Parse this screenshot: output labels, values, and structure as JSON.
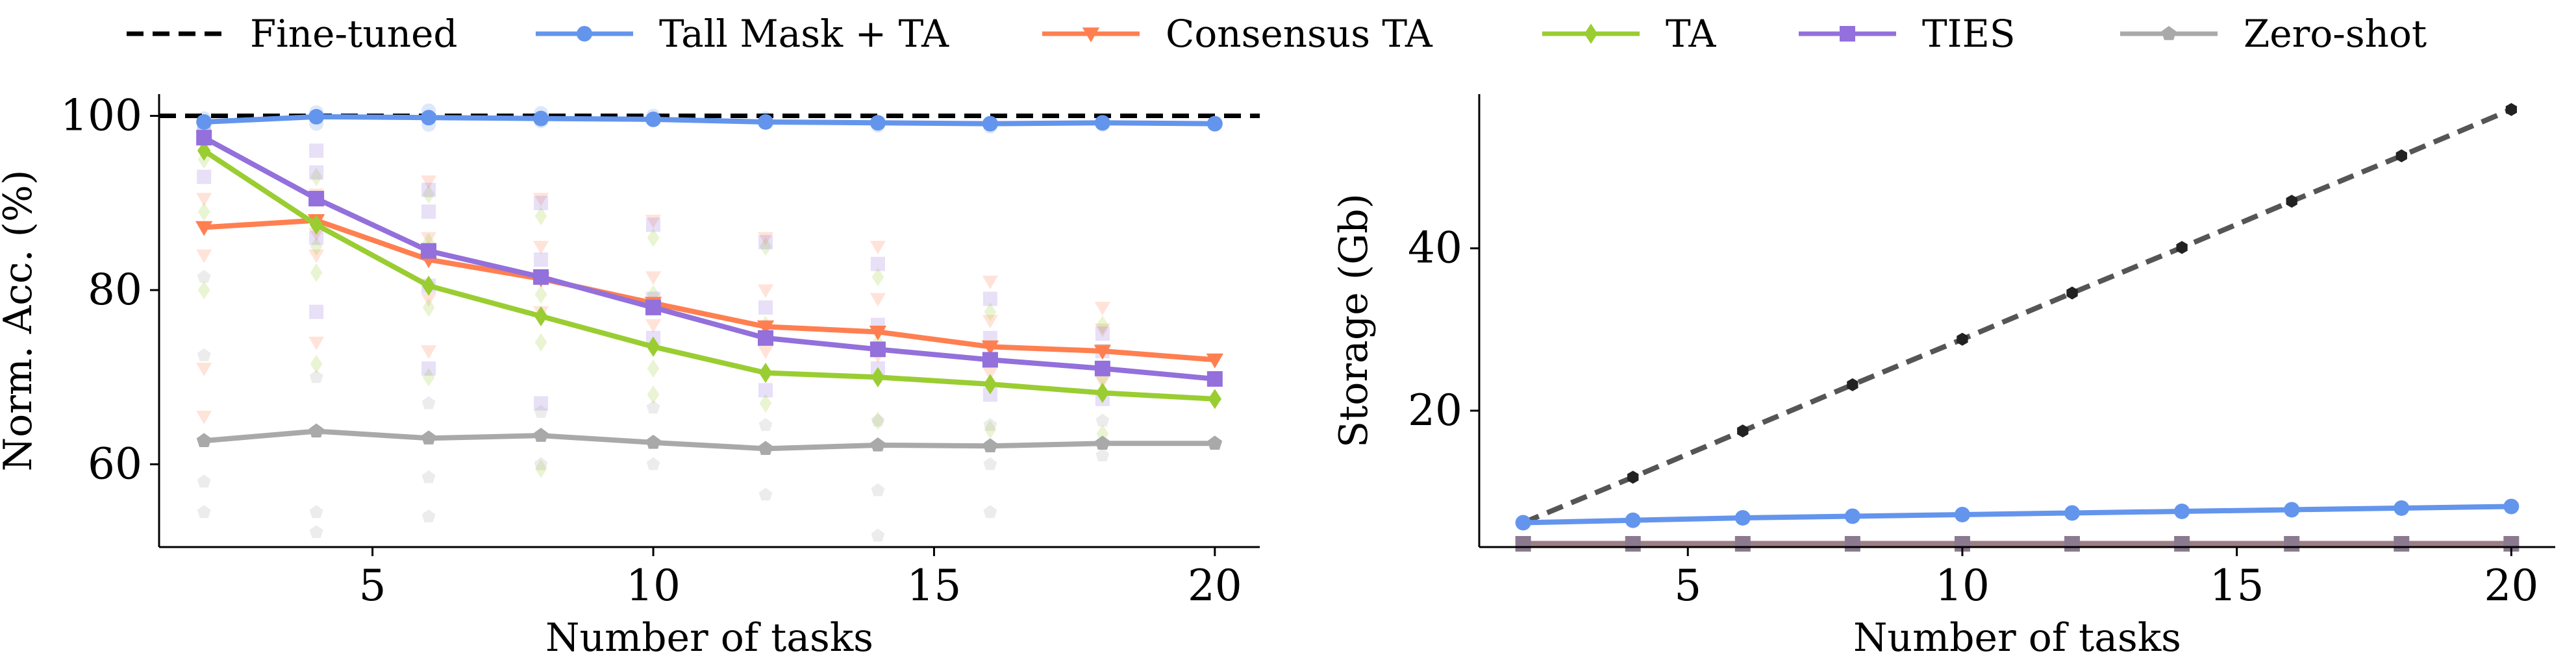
{
  "legend": [
    {
      "key": "finetuned",
      "label": "Fine-tuned"
    },
    {
      "key": "tallmask",
      "label": "Tall Mask + TA"
    },
    {
      "key": "consensus",
      "label": "Consensus TA"
    },
    {
      "key": "ta",
      "label": "TA"
    },
    {
      "key": "ties",
      "label": "TIES"
    },
    {
      "key": "zeroshot",
      "label": "Zero-shot"
    }
  ],
  "colors": {
    "finetuned": "#000000",
    "tallmask": "#6495ED",
    "consensus": "#FF7F50",
    "ta": "#9ACD32",
    "ties": "#9370DB",
    "zeroshot": "#A9A9A9",
    "storage_line": "#555555"
  },
  "chart_data": [
    {
      "type": "line",
      "xlabel": "Number of tasks",
      "ylabel": "Norm. Acc. (%)",
      "xlim": [
        1.2,
        20.8
      ],
      "ylim": [
        50.5,
        102.5
      ],
      "xticks": [
        5,
        10,
        15,
        20
      ],
      "yticks": [
        60,
        80,
        100
      ],
      "grid": false,
      "x": [
        2,
        4,
        6,
        8,
        10,
        12,
        14,
        16,
        18,
        20
      ],
      "reference_lines": [
        {
          "key": "finetuned",
          "name": "Fine-tuned",
          "value": 100,
          "style": "dashed"
        }
      ],
      "series": [
        {
          "key": "tallmask",
          "name": "Tall Mask + TA",
          "marker": "circle",
          "values": [
            99.3,
            99.9,
            99.8,
            99.7,
            99.6,
            99.3,
            99.2,
            99.1,
            99.2,
            99.1
          ]
        },
        {
          "key": "consensus",
          "name": "Consensus TA",
          "marker": "triangle-down",
          "values": [
            87.2,
            88.0,
            83.5,
            81.3,
            78.5,
            75.8,
            75.2,
            73.5,
            73.0,
            72.0
          ]
        },
        {
          "key": "ta",
          "name": "TA",
          "marker": "diamond",
          "values": [
            96.0,
            87.5,
            80.5,
            77.0,
            73.5,
            70.5,
            70.0,
            69.2,
            68.2,
            67.5
          ]
        },
        {
          "key": "ties",
          "name": "TIES",
          "marker": "square",
          "values": [
            97.5,
            90.5,
            84.5,
            81.5,
            78.0,
            74.5,
            73.2,
            72.0,
            71.0,
            69.8
          ]
        },
        {
          "key": "zeroshot",
          "name": "Zero-shot",
          "marker": "pentagon",
          "values": [
            62.7,
            63.8,
            63.0,
            63.3,
            62.5,
            61.8,
            62.2,
            62.1,
            62.4,
            62.4
          ]
        }
      ],
      "scatter_points": {
        "tallmask": [
          [
            2,
            98.4
          ],
          [
            2,
            99.7
          ],
          [
            4,
            100.4
          ],
          [
            4,
            99.1
          ],
          [
            6,
            100.6
          ],
          [
            6,
            99.0
          ],
          [
            8,
            100.3
          ],
          [
            8,
            99.4
          ],
          [
            10,
            100.0
          ],
          [
            12,
            99.7
          ],
          [
            14,
            98.9
          ],
          [
            16,
            98.8
          ],
          [
            18,
            99.0
          ]
        ],
        "consensus": [
          [
            2,
            90.5
          ],
          [
            2,
            84.0
          ],
          [
            2,
            71.0
          ],
          [
            2,
            65.5
          ],
          [
            4,
            91.0
          ],
          [
            4,
            86.5
          ],
          [
            4,
            84.0
          ],
          [
            4,
            74.0
          ],
          [
            6,
            92.5
          ],
          [
            6,
            86.0
          ],
          [
            6,
            79.0
          ],
          [
            6,
            73.0
          ],
          [
            8,
            90.5
          ],
          [
            8,
            85.0
          ],
          [
            8,
            77.5
          ],
          [
            10,
            88.0
          ],
          [
            10,
            81.5
          ],
          [
            10,
            76.0
          ],
          [
            12,
            86.0
          ],
          [
            12,
            80.0
          ],
          [
            12,
            73.0
          ],
          [
            14,
            85.0
          ],
          [
            14,
            79.0
          ],
          [
            14,
            72.5
          ],
          [
            16,
            81.0
          ],
          [
            16,
            76.5
          ],
          [
            16,
            70.5
          ],
          [
            18,
            78.0
          ],
          [
            18,
            75.5
          ],
          [
            18,
            69.5
          ]
        ],
        "ta": [
          [
            2,
            95.0
          ],
          [
            2,
            89.0
          ],
          [
            2,
            80.0
          ],
          [
            4,
            93.0
          ],
          [
            4,
            85.0
          ],
          [
            4,
            82.0
          ],
          [
            4,
            71.5
          ],
          [
            6,
            91.0
          ],
          [
            6,
            85.5
          ],
          [
            6,
            78.0
          ],
          [
            6,
            70.0
          ],
          [
            8,
            88.5
          ],
          [
            8,
            79.5
          ],
          [
            8,
            74.0
          ],
          [
            8,
            59.5
          ],
          [
            10,
            86.0
          ],
          [
            10,
            79.5
          ],
          [
            10,
            71.0
          ],
          [
            10,
            68.0
          ],
          [
            12,
            85.0
          ],
          [
            12,
            76.0
          ],
          [
            12,
            67.0
          ],
          [
            14,
            81.5
          ],
          [
            14,
            74.0
          ],
          [
            14,
            65.0
          ],
          [
            16,
            77.5
          ],
          [
            16,
            72.0
          ],
          [
            16,
            64.0
          ],
          [
            18,
            76.0
          ],
          [
            18,
            70.0
          ],
          [
            18,
            63.5
          ]
        ],
        "ties": [
          [
            2,
            98.0
          ],
          [
            2,
            93.0
          ],
          [
            4,
            96.0
          ],
          [
            4,
            93.5
          ],
          [
            4,
            86.0
          ],
          [
            4,
            77.5
          ],
          [
            6,
            91.5
          ],
          [
            6,
            89.0
          ],
          [
            6,
            80.5
          ],
          [
            6,
            71.0
          ],
          [
            8,
            90.0
          ],
          [
            8,
            83.5
          ],
          [
            8,
            67.0
          ],
          [
            10,
            87.5
          ],
          [
            10,
            79.0
          ],
          [
            10,
            74.5
          ],
          [
            12,
            85.5
          ],
          [
            12,
            78.0
          ],
          [
            12,
            68.5
          ],
          [
            14,
            83.0
          ],
          [
            14,
            76.0
          ],
          [
            14,
            71.0
          ],
          [
            16,
            79.0
          ],
          [
            16,
            74.5
          ],
          [
            16,
            68.0
          ],
          [
            18,
            75.0
          ],
          [
            18,
            73.0
          ],
          [
            18,
            67.5
          ]
        ],
        "zeroshot": [
          [
            2,
            81.5
          ],
          [
            2,
            72.5
          ],
          [
            2,
            58.0
          ],
          [
            2,
            54.5
          ],
          [
            4,
            70.0
          ],
          [
            4,
            54.5
          ],
          [
            4,
            52.2
          ],
          [
            6,
            67.0
          ],
          [
            6,
            58.5
          ],
          [
            6,
            54.0
          ],
          [
            8,
            66.0
          ],
          [
            8,
            60.0
          ],
          [
            10,
            66.5
          ],
          [
            10,
            60.0
          ],
          [
            12,
            64.5
          ],
          [
            12,
            56.5
          ],
          [
            14,
            65.0
          ],
          [
            14,
            57.0
          ],
          [
            14,
            51.8
          ],
          [
            16,
            64.5
          ],
          [
            16,
            60.0
          ],
          [
            16,
            54.5
          ],
          [
            18,
            65.0
          ],
          [
            18,
            61.0
          ]
        ]
      }
    },
    {
      "type": "line",
      "xlabel": "Number of tasks",
      "ylabel": "Storage (Gb)",
      "xlim": [
        1.2,
        20.8
      ],
      "ylim": [
        3.2,
        59.0
      ],
      "xticks": [
        5,
        10,
        15,
        20
      ],
      "yticks": [
        20,
        40
      ],
      "grid": false,
      "x": [
        2,
        4,
        6,
        8,
        10,
        12,
        14,
        16,
        18,
        20
      ],
      "series": [
        {
          "key": "finetuned",
          "name": "Fine-tuned",
          "style": "dashed",
          "marker": "hexagon",
          "values": [
            6.2,
            11.8,
            17.5,
            23.2,
            28.8,
            34.5,
            40.1,
            45.8,
            51.4,
            57.1
          ]
        },
        {
          "key": "tallmask",
          "name": "Tall Mask + TA",
          "marker": "circle",
          "values": [
            6.2,
            6.5,
            6.8,
            7.0,
            7.2,
            7.4,
            7.6,
            7.8,
            8.0,
            8.2
          ]
        },
        {
          "key": "ties",
          "name": "TIES",
          "marker": "square",
          "values": [
            3.6,
            3.6,
            3.6,
            3.6,
            3.6,
            3.6,
            3.6,
            3.6,
            3.6,
            3.6
          ]
        }
      ]
    }
  ]
}
